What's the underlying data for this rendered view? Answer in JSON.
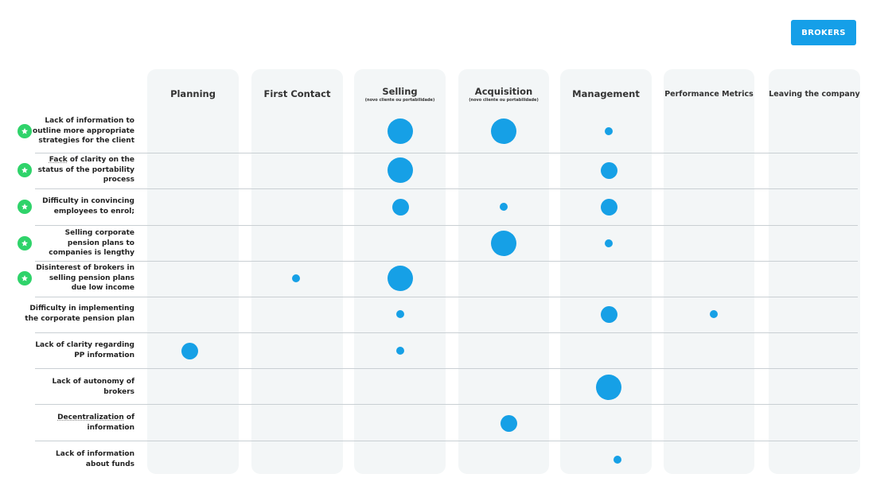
{
  "header": {
    "brokers_button": "BROKERS"
  },
  "columns": [
    {
      "title": "Planning",
      "subtitle": ""
    },
    {
      "title": "First Contact",
      "subtitle": ""
    },
    {
      "title": "Selling",
      "subtitle": "(novo cliente ou portabilidade)"
    },
    {
      "title": "Acquisition",
      "subtitle": "(novo cliente ou portabilidade)"
    },
    {
      "title": "Management",
      "subtitle": ""
    },
    {
      "title": "Performance Metrics",
      "subtitle": ""
    },
    {
      "title": "Leaving the company",
      "subtitle": ""
    }
  ],
  "rows": [
    {
      "lines": [
        "Lack of information to",
        "outline more appropriate",
        "strategies for the client"
      ],
      "starred": true
    },
    {
      "lines": [
        "Fack of clarity on the",
        "status of the portability",
        "process"
      ],
      "starred": true,
      "underline_first_word": "Fack"
    },
    {
      "lines": [
        "Difficulty in convincing",
        "employees to enrol;"
      ],
      "starred": true
    },
    {
      "lines": [
        "Selling corporate",
        "pension plans to",
        "companies is lengthy"
      ],
      "starred": true
    },
    {
      "lines": [
        "Disinterest of brokers in",
        "selling pension plans",
        "due low income"
      ],
      "starred": true
    },
    {
      "lines": [
        "Difficulty in implementing",
        "the corporate pension plan"
      ],
      "starred": false
    },
    {
      "lines": [
        "Lack of clarity regarding",
        "PP information"
      ],
      "starred": false
    },
    {
      "lines": [
        "Lack of autonomy of",
        "brokers"
      ],
      "starred": false
    },
    {
      "lines": [
        "Decentralization of",
        "information"
      ],
      "starred": false,
      "underline_first_word": "Decentralization"
    },
    {
      "lines": [
        "Lack of information",
        "about funds"
      ],
      "starred": false
    }
  ],
  "dots": [
    {
      "row": 0,
      "col": 2,
      "size": "large"
    },
    {
      "row": 0,
      "col": 3,
      "size": "large"
    },
    {
      "row": 0,
      "col": 4,
      "size": "small"
    },
    {
      "row": 1,
      "col": 2,
      "size": "large"
    },
    {
      "row": 1,
      "col": 4,
      "size": "medium"
    },
    {
      "row": 2,
      "col": 2,
      "size": "medium"
    },
    {
      "row": 2,
      "col": 3,
      "size": "small"
    },
    {
      "row": 2,
      "col": 4,
      "size": "medium"
    },
    {
      "row": 3,
      "col": 3,
      "size": "large"
    },
    {
      "row": 3,
      "col": 4,
      "size": "small"
    },
    {
      "row": 4,
      "col": 1,
      "size": "small"
    },
    {
      "row": 4,
      "col": 2,
      "size": "large"
    },
    {
      "row": 5,
      "col": 2,
      "size": "small"
    },
    {
      "row": 5,
      "col": 4,
      "size": "medium"
    },
    {
      "row": 5,
      "col": 5,
      "size": "small"
    },
    {
      "row": 6,
      "col": 0,
      "size": "medium"
    },
    {
      "row": 6,
      "col": 2,
      "size": "small"
    },
    {
      "row": 7,
      "col": 4,
      "size": "large"
    },
    {
      "row": 8,
      "col": 3,
      "size": "medium"
    },
    {
      "row": 9,
      "col": 4,
      "size": "small"
    }
  ],
  "colors": {
    "accent": "#159fe8",
    "dot": "#16a0e6",
    "star": "#2fd36a",
    "column_bg": "#f3f6f7"
  }
}
